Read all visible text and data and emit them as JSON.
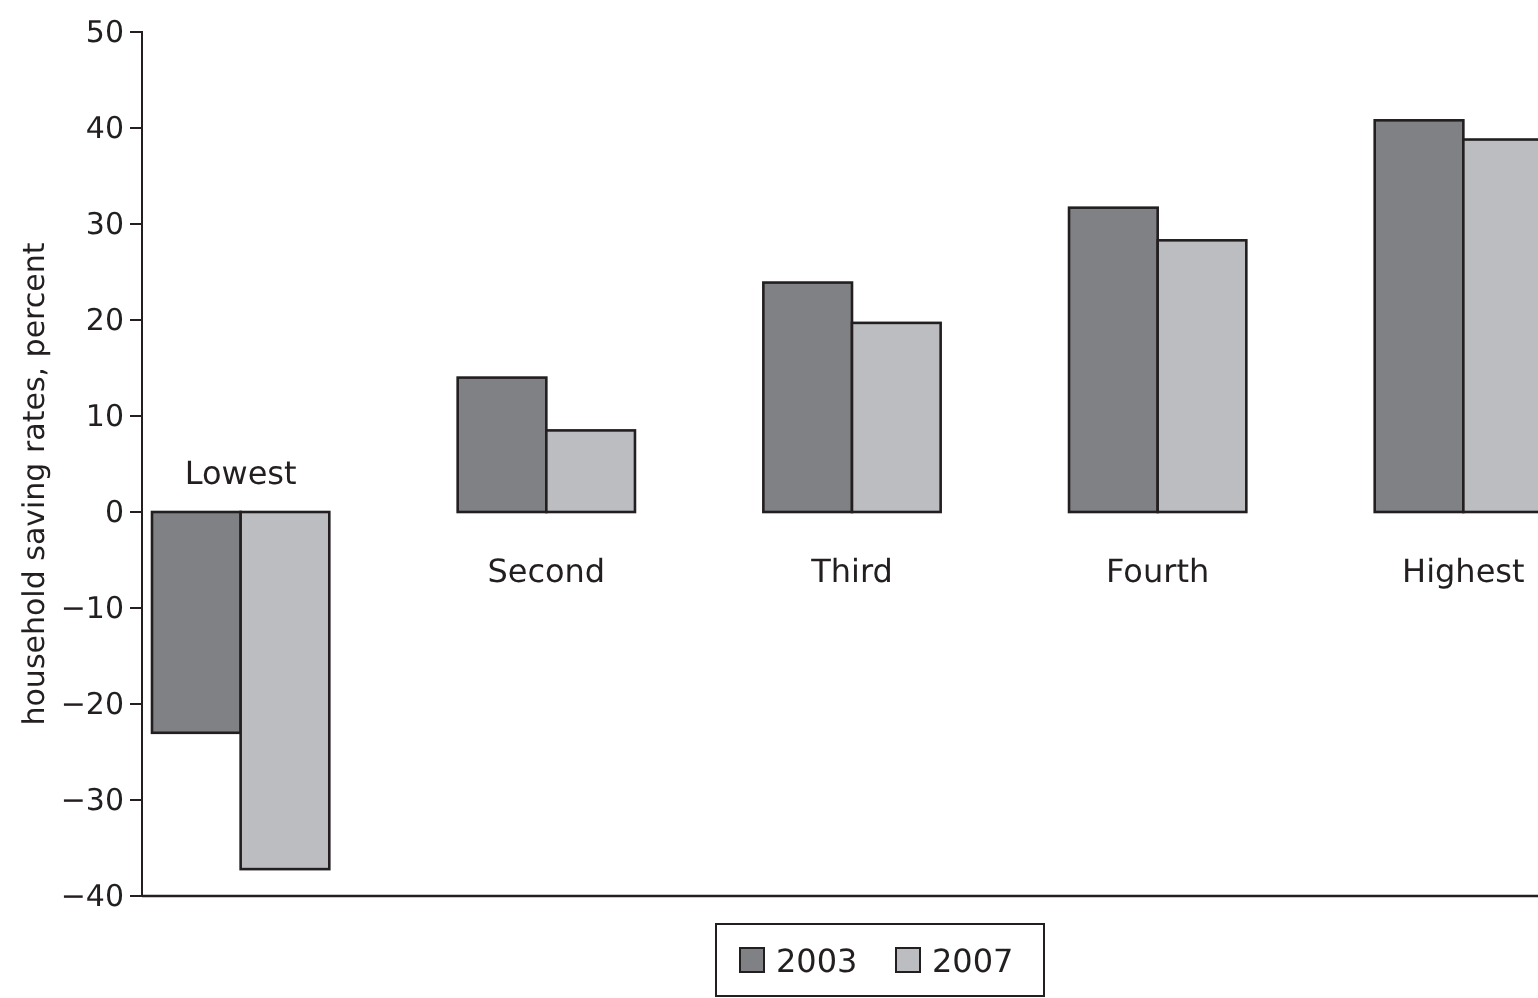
{
  "chart_data": {
    "type": "bar",
    "ylabel": "household saving rates, percent",
    "categories": [
      "Lowest",
      "Second",
      "Third",
      "Fourth",
      "Highest"
    ],
    "series": [
      {
        "name": "2003",
        "color": "#808184",
        "values": [
          -23,
          14,
          23.9,
          31.7,
          40.8
        ]
      },
      {
        "name": "2007",
        "color": "#bcbdc0",
        "values": [
          -37.2,
          8.5,
          19.7,
          28.3,
          38.8
        ]
      }
    ],
    "ylim": [
      -40,
      50
    ],
    "yticks": [
      {
        "value": -40,
        "label": "−40"
      },
      {
        "value": -30,
        "label": "−30"
      },
      {
        "value": -20,
        "label": "−20"
      },
      {
        "value": -10,
        "label": "−10"
      },
      0,
      10,
      20,
      30,
      40,
      50
    ],
    "grid": false,
    "legend": "bottom"
  }
}
